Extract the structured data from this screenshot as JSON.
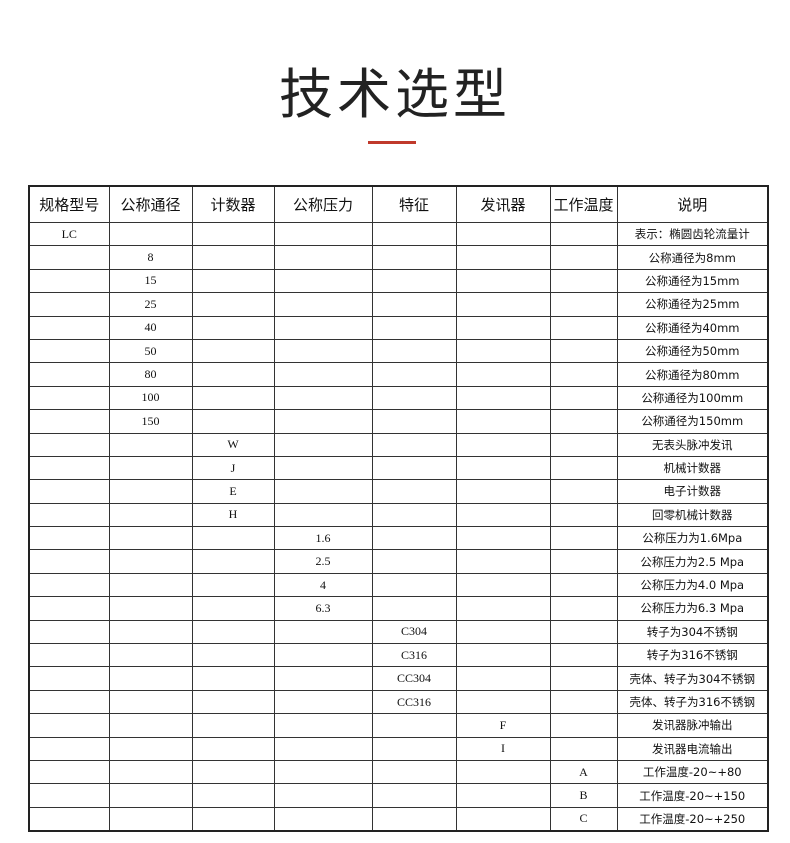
{
  "page_title": "技术选型",
  "accent_color": "#c0392b",
  "table": {
    "headers": [
      "规格型号",
      "公称通径",
      "计数器",
      "公称压力",
      "特征",
      "发讯器",
      "工作温度",
      "说明"
    ],
    "rows": [
      [
        "LC",
        "",
        "",
        "",
        "",
        "",
        "",
        "表示：椭圆齿轮流量计"
      ],
      [
        "",
        "8",
        "",
        "",
        "",
        "",
        "",
        "公称通径为8mm"
      ],
      [
        "",
        "15",
        "",
        "",
        "",
        "",
        "",
        "公称通径为15mm"
      ],
      [
        "",
        "25",
        "",
        "",
        "",
        "",
        "",
        "公称通径为25mm"
      ],
      [
        "",
        "40",
        "",
        "",
        "",
        "",
        "",
        "公称通径为40mm"
      ],
      [
        "",
        "50",
        "",
        "",
        "",
        "",
        "",
        "公称通径为50mm"
      ],
      [
        "",
        "80",
        "",
        "",
        "",
        "",
        "",
        "公称通径为80mm"
      ],
      [
        "",
        "100",
        "",
        "",
        "",
        "",
        "",
        "公称通径为100mm"
      ],
      [
        "",
        "150",
        "",
        "",
        "",
        "",
        "",
        "公称通径为150mm"
      ],
      [
        "",
        "",
        "W",
        "",
        "",
        "",
        "",
        "无表头脉冲发讯"
      ],
      [
        "",
        "",
        "J",
        "",
        "",
        "",
        "",
        "机械计数器"
      ],
      [
        "",
        "",
        "E",
        "",
        "",
        "",
        "",
        "电子计数器"
      ],
      [
        "",
        "",
        "H",
        "",
        "",
        "",
        "",
        "回零机械计数器"
      ],
      [
        "",
        "",
        "",
        "1.6",
        "",
        "",
        "",
        "公称压力为1.6Mpa"
      ],
      [
        "",
        "",
        "",
        "2.5",
        "",
        "",
        "",
        "公称压力为2.5 Mpa"
      ],
      [
        "",
        "",
        "",
        "4",
        "",
        "",
        "",
        "公称压力为4.0 Mpa"
      ],
      [
        "",
        "",
        "",
        "6.3",
        "",
        "",
        "",
        "公称压力为6.3 Mpa"
      ],
      [
        "",
        "",
        "",
        "",
        "C304",
        "",
        "",
        "转子为304不锈钢"
      ],
      [
        "",
        "",
        "",
        "",
        "C316",
        "",
        "",
        "转子为316不锈钢"
      ],
      [
        "",
        "",
        "",
        "",
        "CC304",
        "",
        "",
        "壳体、转子为304不锈钢"
      ],
      [
        "",
        "",
        "",
        "",
        "CC316",
        "",
        "",
        "壳体、转子为316不锈钢"
      ],
      [
        "",
        "",
        "",
        "",
        "",
        "F",
        "",
        "发讯器脉冲输出"
      ],
      [
        "",
        "",
        "",
        "",
        "",
        "I",
        "",
        "发讯器电流输出"
      ],
      [
        "",
        "",
        "",
        "",
        "",
        "",
        "A",
        "工作温度-20~+80"
      ],
      [
        "",
        "",
        "",
        "",
        "",
        "",
        "B",
        "工作温度-20~+150"
      ],
      [
        "",
        "",
        "",
        "",
        "",
        "",
        "C",
        "工作温度-20~+250"
      ]
    ]
  }
}
